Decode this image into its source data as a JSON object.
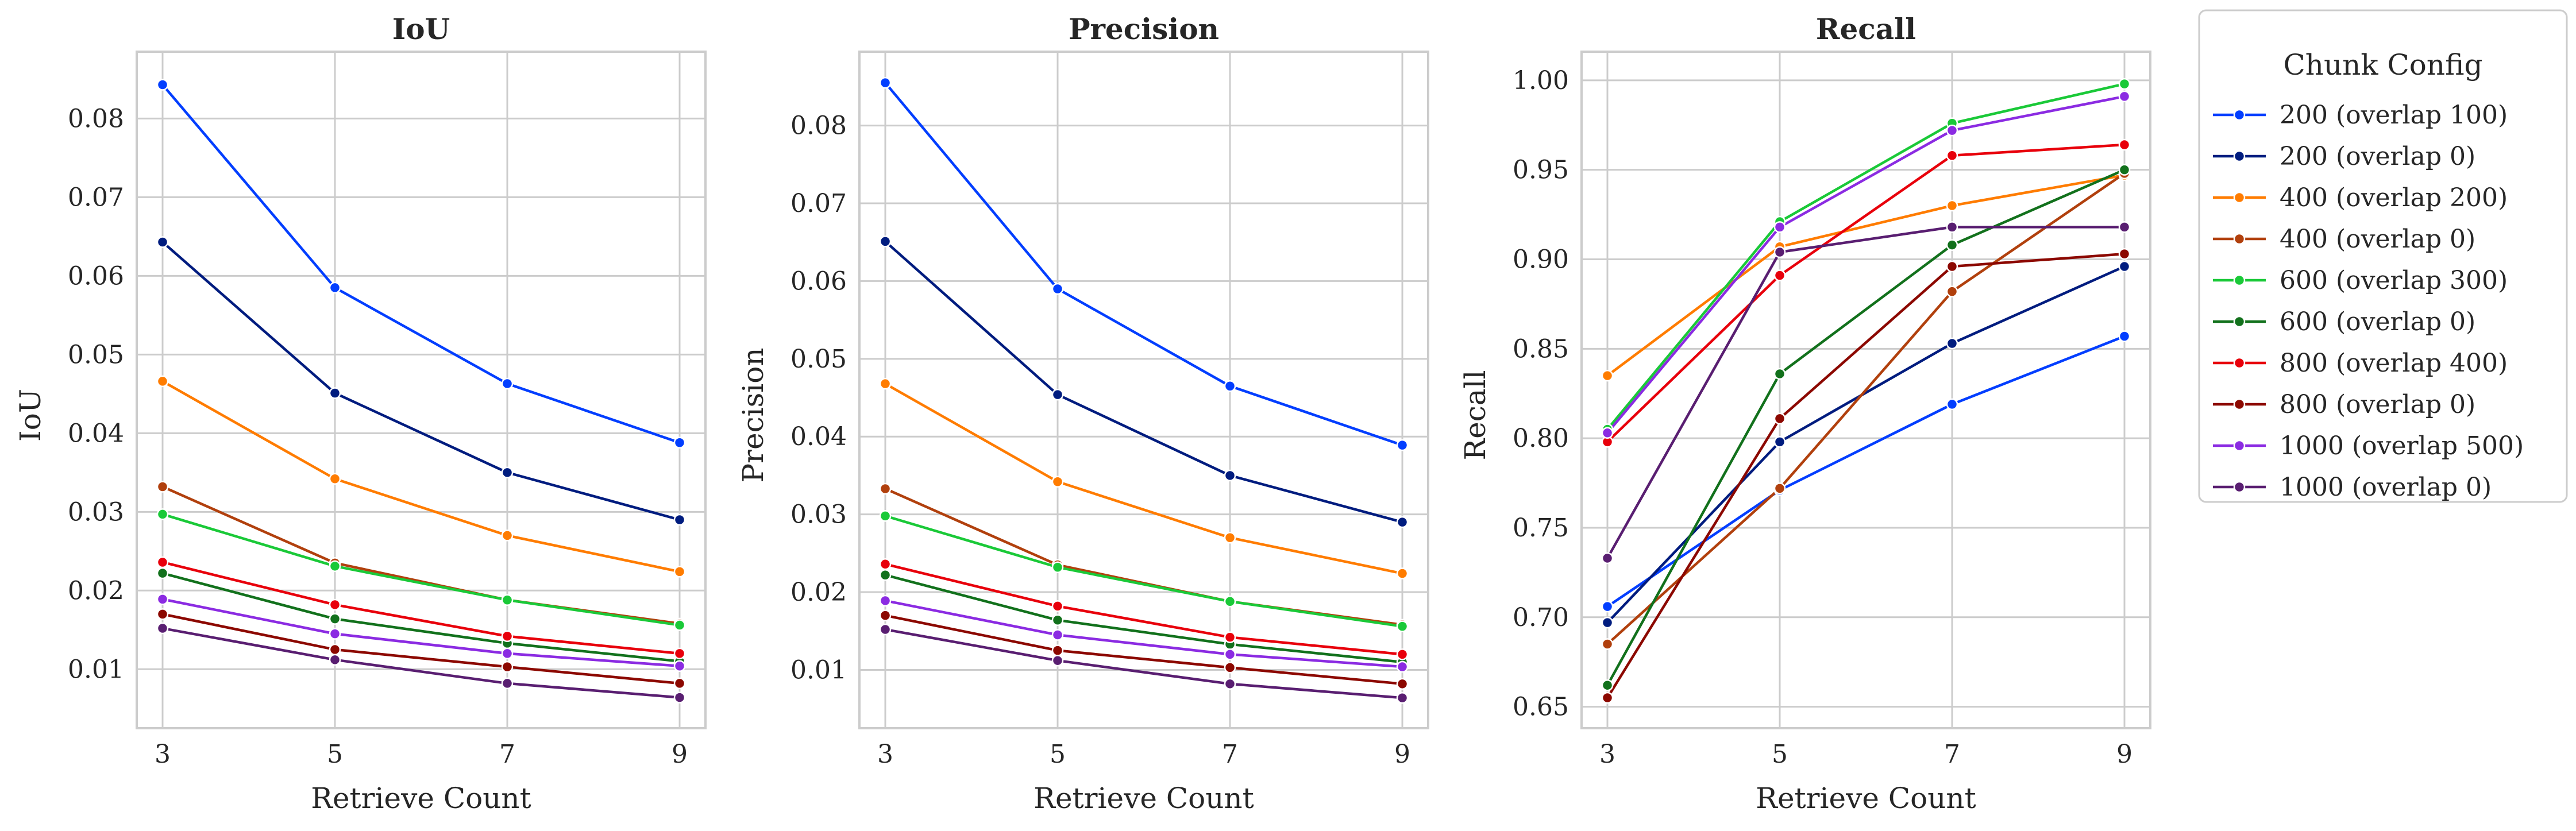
{
  "chart_data": [
    {
      "type": "line",
      "title": "IoU",
      "xlabel": "Retrieve Count",
      "ylabel": "IoU",
      "x": [
        3,
        5,
        7,
        9
      ],
      "ylim": [
        0.0025,
        0.0885
      ],
      "yticks": [
        0.01,
        0.02,
        0.03,
        0.04,
        0.05,
        0.06,
        0.07,
        0.08
      ],
      "ytick_labels": [
        "0.01",
        "0.02",
        "0.03",
        "0.04",
        "0.05",
        "0.06",
        "0.07",
        "0.08"
      ],
      "grid": true,
      "series": [
        {
          "name": "200 (overlap 100)",
          "values": [
            0.0843,
            0.0585,
            0.0463,
            0.0388
          ]
        },
        {
          "name": "200 (overlap 0)",
          "values": [
            0.0643,
            0.0451,
            0.035,
            0.029
          ]
        },
        {
          "name": "400 (overlap 200)",
          "values": [
            0.0466,
            0.0342,
            0.027,
            0.0224
          ]
        },
        {
          "name": "400 (overlap 0)",
          "values": [
            0.0332,
            0.0235,
            0.0188,
            0.0158
          ]
        },
        {
          "name": "600 (overlap 300)",
          "values": [
            0.0297,
            0.0231,
            0.0188,
            0.0156
          ]
        },
        {
          "name": "600 (overlap 0)",
          "values": [
            0.0222,
            0.0164,
            0.0133,
            0.011
          ]
        },
        {
          "name": "800 (overlap 400)",
          "values": [
            0.0236,
            0.0182,
            0.0142,
            0.012
          ]
        },
        {
          "name": "800 (overlap 0)",
          "values": [
            0.017,
            0.0125,
            0.0103,
            0.0082
          ]
        },
        {
          "name": "1000 (overlap 500)",
          "values": [
            0.0189,
            0.0145,
            0.012,
            0.0104
          ]
        },
        {
          "name": "1000 (overlap 0)",
          "values": [
            0.0152,
            0.0112,
            0.0082,
            0.0064
          ]
        }
      ]
    },
    {
      "type": "line",
      "title": "Precision",
      "xlabel": "Retrieve Count",
      "ylabel": "Precision",
      "x": [
        3,
        5,
        7,
        9
      ],
      "ylim": [
        0.0025,
        0.0895
      ],
      "yticks": [
        0.01,
        0.02,
        0.03,
        0.04,
        0.05,
        0.06,
        0.07,
        0.08
      ],
      "ytick_labels": [
        "0.01",
        "0.02",
        "0.03",
        "0.04",
        "0.05",
        "0.06",
        "0.07",
        "0.08"
      ],
      "grid": true,
      "series": [
        {
          "name": "200 (overlap 100)",
          "values": [
            0.0855,
            0.059,
            0.0465,
            0.0389
          ]
        },
        {
          "name": "200 (overlap 0)",
          "values": [
            0.0651,
            0.0454,
            0.035,
            0.029
          ]
        },
        {
          "name": "400 (overlap 200)",
          "values": [
            0.0468,
            0.0342,
            0.027,
            0.0224
          ]
        },
        {
          "name": "400 (overlap 0)",
          "values": [
            0.0333,
            0.0235,
            0.0188,
            0.0158
          ]
        },
        {
          "name": "600 (overlap 300)",
          "values": [
            0.0298,
            0.0232,
            0.0188,
            0.0156
          ]
        },
        {
          "name": "600 (overlap 0)",
          "values": [
            0.0222,
            0.0164,
            0.0133,
            0.011
          ]
        },
        {
          "name": "800 (overlap 400)",
          "values": [
            0.0236,
            0.0182,
            0.0142,
            0.012
          ]
        },
        {
          "name": "800 (overlap 0)",
          "values": [
            0.017,
            0.0125,
            0.0103,
            0.0082
          ]
        },
        {
          "name": "1000 (overlap 500)",
          "values": [
            0.0189,
            0.0145,
            0.012,
            0.0104
          ]
        },
        {
          "name": "1000 (overlap 0)",
          "values": [
            0.0152,
            0.0112,
            0.0082,
            0.0064
          ]
        }
      ]
    },
    {
      "type": "line",
      "title": "Recall",
      "xlabel": "Retrieve Count",
      "ylabel": "Recall",
      "x": [
        3,
        5,
        7,
        9
      ],
      "ylim": [
        0.638,
        1.016
      ],
      "yticks": [
        0.65,
        0.7,
        0.75,
        0.8,
        0.85,
        0.9,
        0.95,
        1.0
      ],
      "ytick_labels": [
        "0.65",
        "0.70",
        "0.75",
        "0.80",
        "0.85",
        "0.90",
        "0.95",
        "1.00"
      ],
      "grid": true,
      "series": [
        {
          "name": "200 (overlap 100)",
          "values": [
            0.706,
            0.771,
            0.819,
            0.857
          ]
        },
        {
          "name": "200 (overlap 0)",
          "values": [
            0.697,
            0.798,
            0.853,
            0.896
          ]
        },
        {
          "name": "400 (overlap 200)",
          "values": [
            0.835,
            0.907,
            0.93,
            0.947
          ]
        },
        {
          "name": "400 (overlap 0)",
          "values": [
            0.685,
            0.772,
            0.882,
            0.948
          ]
        },
        {
          "name": "600 (overlap 300)",
          "values": [
            0.805,
            0.921,
            0.976,
            0.998
          ]
        },
        {
          "name": "600 (overlap 0)",
          "values": [
            0.662,
            0.836,
            0.908,
            0.95
          ]
        },
        {
          "name": "800 (overlap 400)",
          "values": [
            0.798,
            0.891,
            0.958,
            0.964
          ]
        },
        {
          "name": "800 (overlap 0)",
          "values": [
            0.655,
            0.811,
            0.896,
            0.903
          ]
        },
        {
          "name": "1000 (overlap 500)",
          "values": [
            0.803,
            0.918,
            0.972,
            0.991
          ]
        },
        {
          "name": "1000 (overlap 0)",
          "values": [
            0.733,
            0.904,
            0.918,
            0.918
          ]
        }
      ]
    }
  ],
  "legend": {
    "title": "Chunk Config",
    "placement": "outside right, upper",
    "entries": [
      {
        "label": "200 (overlap 100)",
        "color": "#023eff"
      },
      {
        "label": "200 (overlap 0)",
        "color": "#001c7f"
      },
      {
        "label": "400 (overlap 200)",
        "color": "#ff7c00"
      },
      {
        "label": "400 (overlap 0)",
        "color": "#b1400d"
      },
      {
        "label": "600 (overlap 300)",
        "color": "#1ac938"
      },
      {
        "label": "600 (overlap 0)",
        "color": "#12711c"
      },
      {
        "label": "800 (overlap 400)",
        "color": "#e8000b"
      },
      {
        "label": "800 (overlap 0)",
        "color": "#8c0800"
      },
      {
        "label": "1000 (overlap 500)",
        "color": "#8b2be2"
      },
      {
        "label": "1000 (overlap 0)",
        "color": "#591e71"
      }
    ]
  },
  "colors": {
    "grid": "#cccccc",
    "axes_edge": "#cccccc",
    "background": "#ffffff",
    "text": "#262626"
  }
}
